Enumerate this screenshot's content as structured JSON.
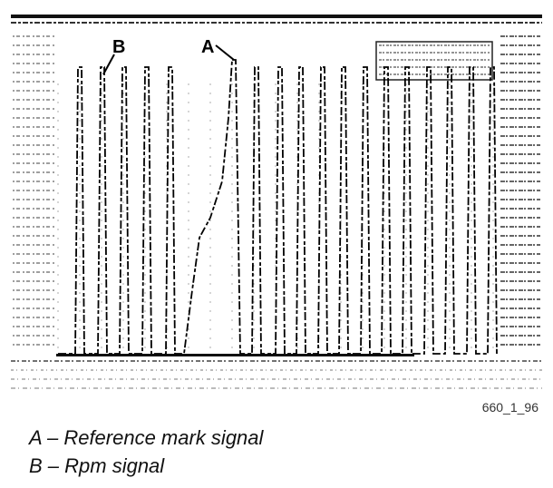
{
  "figure": {
    "marker_a": "A",
    "marker_b": "B",
    "figure_id": "660_1_96"
  },
  "legend": [
    {
      "key": "A",
      "text": "A – Reference mark signal"
    },
    {
      "key": "B",
      "text": "B – Rpm signal"
    }
  ]
}
